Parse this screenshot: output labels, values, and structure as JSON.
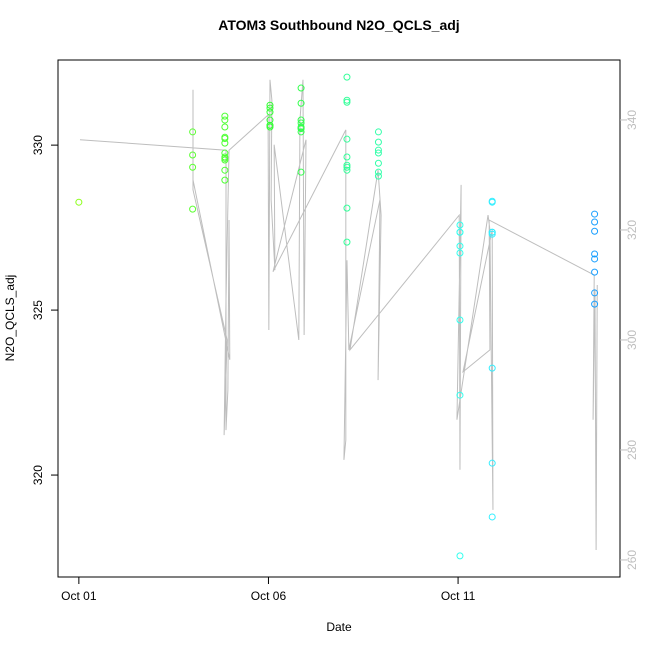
{
  "chart_data": {
    "type": "scatter",
    "title": "ATOM3 Southbound N2O_QCLS_adj",
    "xlabel": "Date",
    "ylabel": "N2O_QCLS_adj",
    "xlim": [
      0.45,
      15.27
    ],
    "ylim": [
      316.91,
      332.58
    ],
    "y2lim": [
      256.9,
      350.9
    ],
    "xticks": [
      {
        "value": 1,
        "label": "Oct 01"
      },
      {
        "value": 6,
        "label": "Oct 06"
      },
      {
        "value": 11,
        "label": "Oct 11"
      }
    ],
    "yticks": [
      320,
      325,
      330
    ],
    "y2ticks": [
      260,
      280,
      300,
      320,
      340
    ],
    "y2color": "#bebebe",
    "series": [
      {
        "type": "scatter",
        "x": [
          1.0,
          4.0,
          4.0,
          4.0,
          4.0,
          4.85,
          4.85,
          4.85,
          4.85,
          4.85,
          4.85,
          4.85,
          4.85,
          4.85,
          4.85,
          4.85,
          4.85,
          6.04,
          6.04,
          6.04,
          6.04,
          6.04,
          6.04,
          6.04,
          6.86,
          6.86,
          6.86,
          6.86,
          6.86,
          6.86,
          6.86,
          6.86,
          6.86,
          8.07,
          8.07,
          8.07,
          8.07,
          8.07,
          8.07,
          8.07,
          8.07,
          8.07,
          8.07,
          8.9,
          8.9,
          8.9,
          8.9,
          8.9,
          8.9,
          8.9,
          11.05,
          11.05,
          11.05,
          11.05,
          11.05,
          11.05,
          11.05,
          11.05,
          11.9,
          11.9,
          11.9,
          11.9,
          11.9,
          11.9,
          11.9,
          11.9,
          14.6,
          14.6,
          14.6,
          14.6,
          14.6,
          14.6,
          14.6,
          14.6
        ],
        "values": [
          328.27,
          330.4,
          329.7,
          329.33,
          328.06,
          330.76,
          330.88,
          330.55,
          330.24,
          330.2,
          330.06,
          329.76,
          329.6,
          329.55,
          329.64,
          329.24,
          328.94,
          331.12,
          331.0,
          331.21,
          330.76,
          330.6,
          330.55,
          330.6,
          330.76,
          330.67,
          330.52,
          330.55,
          330.4,
          330.5,
          329.18,
          331.27,
          331.73,
          332.06,
          331.36,
          331.3,
          330.18,
          329.64,
          329.39,
          329.24,
          329.33,
          328.09,
          327.06,
          330.4,
          330.09,
          329.85,
          329.76,
          329.45,
          329.18,
          329.06,
          327.58,
          327.36,
          327.36,
          326.94,
          326.73,
          324.7,
          322.42,
          317.55,
          328.3,
          328.27,
          327.36,
          327.36,
          327.3,
          323.24,
          320.36,
          318.73,
          327.91,
          327.67,
          327.39,
          326.7,
          326.55,
          326.15,
          325.52,
          325.18
        ],
        "colors": [
          "#8cff1a",
          "#5cff33",
          "#5cff33",
          "#5cff33",
          "#5cff33",
          "#4dff33",
          "#4dff33",
          "#4dff33",
          "#4dff33",
          "#4dff33",
          "#4dff33",
          "#4dff33",
          "#4dff33",
          "#4dff33",
          "#4dff33",
          "#4dff33",
          "#4dff33",
          "#33ff33",
          "#33ff33",
          "#33ff33",
          "#33ff33",
          "#33ff33",
          "#33ff33",
          "#33ff33",
          "#33ff4d",
          "#33ff4d",
          "#33ff4d",
          "#33ff4d",
          "#33ff4d",
          "#33ff4d",
          "#33ff4d",
          "#33ff4d",
          "#33ff4d",
          "#33ff99",
          "#33ff99",
          "#33ff99",
          "#33ff99",
          "#33ff99",
          "#33ff99",
          "#33ff99",
          "#33ff99",
          "#33ff99",
          "#33ff99",
          "#33ffaa",
          "#33ffaa",
          "#33ffaa",
          "#33ffaa",
          "#33ffaa",
          "#33ffaa",
          "#33ffaa",
          "#33ffee",
          "#33ffee",
          "#33ffee",
          "#33ffee",
          "#33ffee",
          "#33ffee",
          "#33ffee",
          "#33ffee",
          "#33eeff",
          "#33eeff",
          "#33eeff",
          "#33eeff",
          "#33eeff",
          "#33eeff",
          "#33eeff",
          "#33eeff",
          "#1a9fff",
          "#1a9fff",
          "#1a9fff",
          "#1a9fff",
          "#1a9fff",
          "#1a9fff",
          "#1a9fff",
          "#1a9fff"
        ]
      },
      {
        "type": "line",
        "axis": "y2",
        "color": "#bebebe",
        "x": [
          1.03,
          4.88,
          4.88,
          4.93,
          4.96,
          4.98,
          4.01,
          4.01,
          4.01,
          4.91,
          4.83,
          4.88,
          4.96,
          5.99,
          6.01,
          6.04,
          6.09,
          6.07,
          6.17,
          6.15,
          6.8,
          6.83,
          6.91,
          6.94,
          6.99,
          6.12,
          8.04,
          8.04,
          7.99,
          8.07,
          8.12,
          8.94,
          8.89,
          8.97,
          8.89,
          8.15,
          11.03,
          11.05,
          11.08,
          10.97,
          11.79,
          11.84,
          11.92,
          11.9,
          11.13,
          11.84,
          11.82,
          14.59,
          14.56,
          14.61,
          14.64,
          14.67
        ],
        "values": [
          336.4,
          334.5,
          283.6,
          290.9,
          321.8,
          296.4,
          329.1,
          345.5,
          327.3,
          300.0,
          282.7,
          307.3,
          334.5,
          340.9,
          301.8,
          347.3,
          343.6,
          325.5,
          312.7,
          335.5,
          300.0,
          340.0,
          347.3,
          300.9,
          336.4,
          312.4,
          338.2,
          281.8,
          278.2,
          314.5,
          298.2,
          325.5,
          292.7,
          322.7,
          330.9,
          298.2,
          322.7,
          276.4,
          328.2,
          285.5,
          322.7,
          320.0,
          269.1,
          320.0,
          294.2,
          298.2,
          321.8,
          311.8,
          285.5,
          309.1,
          261.8,
          310.0
        ]
      }
    ]
  }
}
